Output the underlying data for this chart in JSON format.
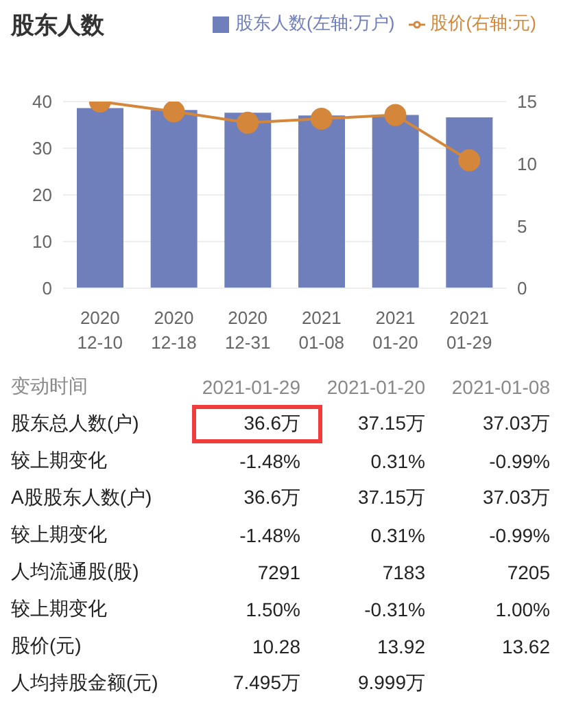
{
  "chart_data": {
    "type": "bar",
    "title": "股东人数",
    "categories": [
      "2020 12-10",
      "2020 12-18",
      "2020 12-31",
      "2021 01-08",
      "2021 01-20",
      "2021 01-29"
    ],
    "series": [
      {
        "name": "股东人数(左轴:万户)",
        "color": "#6e7fbb",
        "values": [
          38.6,
          38.2,
          37.6,
          37.03,
          37.15,
          36.6
        ]
      },
      {
        "name": "股价(右轴:元)",
        "type": "line",
        "axis": "y2",
        "color": "#d4873a",
        "values": [
          15.0,
          14.2,
          13.3,
          13.62,
          13.92,
          10.28
        ]
      }
    ],
    "ylim": [
      0,
      40
    ],
    "yticks": [
      0,
      10,
      20,
      30,
      40
    ],
    "y2lim": [
      0,
      15
    ],
    "y2ticks": [
      0,
      5,
      10,
      15
    ],
    "grid": "y",
    "legend": "top right",
    "marker": "circle",
    "line_style": "solid",
    "annotations": [
      "变动时间",
      "2021-01-29",
      "2021-01-20",
      "2021-01-08",
      "股东总人数(户)",
      "36.6万",
      "37.15万",
      "37.03万",
      "较上期变化",
      "-1.48%",
      "0.31%",
      "-0.99%",
      "A股股东人数(户)",
      "36.6万",
      "37.15万",
      "37.03万",
      "较上期变化",
      "-1.48%",
      "0.31%",
      "-0.99%",
      "人均流通股(股)",
      "7291",
      "7183",
      "7205",
      "较上期变化",
      "1.50%",
      "-0.31%",
      "1.00%",
      "股价(元)",
      "10.28",
      "13.92",
      "13.62",
      "人均持股金额(元)",
      "7.495万",
      "9.999万"
    ]
  }
}
